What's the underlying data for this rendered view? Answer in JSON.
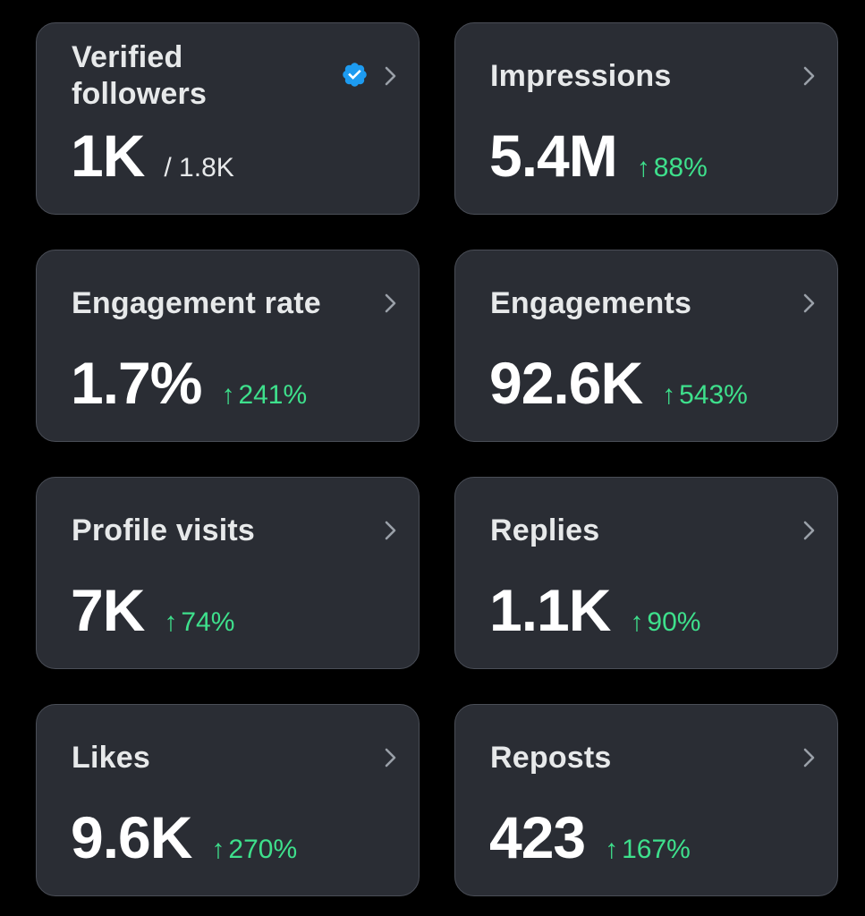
{
  "colors": {
    "background": "#000000",
    "card": "#2a2d34",
    "card_border": "#4a4e57",
    "text": "#e7e9ea",
    "positive": "#3ee08c",
    "verified": "#1d9bf0"
  },
  "cards": [
    {
      "label": "Verified\nfollowers",
      "value": "1K",
      "sub": "/ 1.8K",
      "icon": "verified-badge-icon"
    },
    {
      "label": "Impressions",
      "value": "5.4M",
      "change_arrow": "↑",
      "change": "88%"
    },
    {
      "label": "Engagement rate",
      "value": "1.7%",
      "change_arrow": "↑",
      "change": "241%"
    },
    {
      "label": "Engagements",
      "value": "92.6K",
      "change_arrow": "↑",
      "change": "543%"
    },
    {
      "label": "Profile visits",
      "value": "7K",
      "change_arrow": "↑",
      "change": "74%"
    },
    {
      "label": "Replies",
      "value": "1.1K",
      "change_arrow": "↑",
      "change": "90%"
    },
    {
      "label": "Likes",
      "value": "9.6K",
      "change_arrow": "↑",
      "change": "270%"
    },
    {
      "label": "Reposts",
      "value": "423",
      "change_arrow": "↑",
      "change": "167%"
    }
  ]
}
